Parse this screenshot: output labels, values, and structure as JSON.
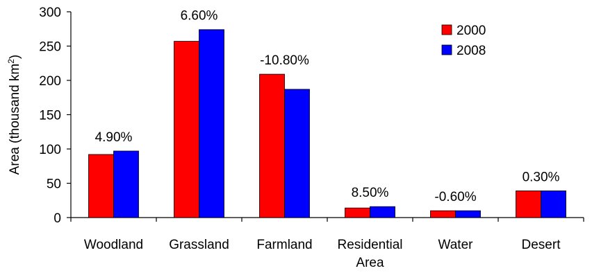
{
  "chart_data": {
    "type": "bar",
    "categories": [
      [
        "Woodland"
      ],
      [
        "Grassland"
      ],
      [
        "Farmland"
      ],
      [
        "Residential",
        "Area"
      ],
      [
        "Water"
      ],
      [
        "Desert"
      ]
    ],
    "series": [
      {
        "name": "2000",
        "color": "#ff0000",
        "values": [
          92,
          257,
          209,
          14,
          10,
          39
        ]
      },
      {
        "name": "2008",
        "color": "#0000ff",
        "values": [
          97,
          274,
          187,
          16,
          10,
          39
        ]
      }
    ],
    "annotations": [
      "4.90%",
      "6.60%",
      "-10.80%",
      "8.50%",
      "-0.60%",
      "0.30%"
    ],
    "ylabel": "Area (thousand km",
    "ylabel_sup": "2",
    "ylabel_close": ")",
    "ylim": [
      0,
      300
    ],
    "yticks": [
      0,
      50,
      100,
      150,
      200,
      250,
      300
    ],
    "legend_position": "top-right",
    "grid": false
  }
}
